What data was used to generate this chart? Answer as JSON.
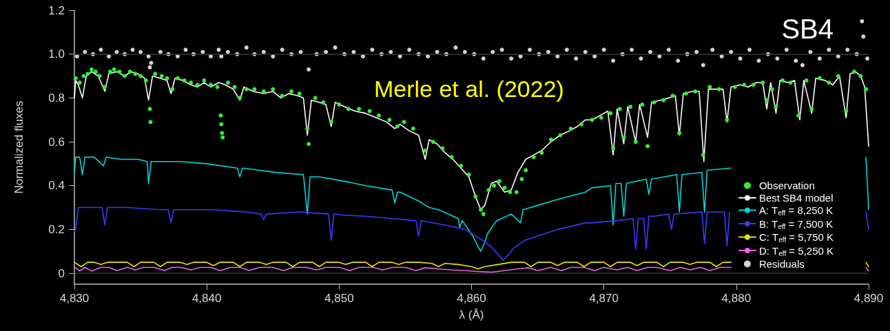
{
  "chart_data": {
    "type": "line",
    "xlabel": "λ (Å)",
    "ylabel": "Normalized fluxes",
    "annotations": [
      "Merle et al. (2022)",
      "SB4"
    ],
    "xlim": [
      4830,
      4890
    ],
    "xticks": [
      {
        "value": 4830,
        "label": "4,830"
      },
      {
        "value": 4840,
        "label": "4,840"
      },
      {
        "value": 4850,
        "label": "4,850"
      },
      {
        "value": 4860,
        "label": "4,860"
      },
      {
        "value": 4870,
        "label": "4,870"
      },
      {
        "value": 4880,
        "label": "4,880"
      },
      {
        "value": 4890,
        "label": "4,890"
      }
    ],
    "ylim": [
      -0.05,
      1.2
    ],
    "yticks": [
      0,
      0.2,
      0.4,
      0.6,
      0.8,
      {
        "value": 1,
        "label": "1.0"
      },
      1.2
    ],
    "legend": "bottom right",
    "ref_lines": [
      {
        "axis": "y",
        "value": 0,
        "color": "#3a3a3a"
      },
      {
        "axis": "y",
        "value": 1,
        "color": "#3a3a3a"
      }
    ],
    "series": [
      {
        "name": "Observation",
        "type": "scatter",
        "color": "#33ee33",
        "x": [
          4830.1,
          4830.4,
          4830.7,
          4831.0,
          4831.3,
          4831.6,
          4831.9,
          4832.3,
          4832.7,
          4833.0,
          4833.4,
          4833.8,
          4834.2,
          4834.6,
          4835.0,
          4835.4,
          4835.7,
          4835.75,
          4836.1,
          4836.6,
          4837.0,
          4837.4,
          4837.8,
          4838.3,
          4838.8,
          4839.3,
          4839.8,
          4840.3,
          4840.8,
          4841.05,
          4841.1,
          4841.15,
          4841.2,
          4841.6,
          4842.1,
          4842.5,
          4843.0,
          4843.6,
          4844.3,
          4845.0,
          4845.7,
          4846.4,
          4847.0,
          4847.6,
          4847.7,
          4848.2,
          4848.8,
          4849.4,
          4850.0,
          4850.7,
          4851.5,
          4852.3,
          4853.0,
          4853.8,
          4854.4,
          4854.9,
          4855.6,
          4856.5,
          4857.1,
          4857.8,
          4858.5,
          4859.2,
          4859.8,
          4860.3,
          4860.7,
          4860.9,
          4861.3,
          4861.7,
          4862.1,
          4862.5,
          4862.9,
          4863.4,
          4863.8,
          4864.1,
          4864.7,
          4865.3,
          4866.0,
          4866.7,
          4867.5,
          4868.3,
          4869.1,
          4869.8,
          4870.5,
          4870.7,
          4871.2,
          4871.5,
          4872.0,
          4872.4,
          4872.9,
          4873.3,
          4873.8,
          4874.5,
          4875.2,
          4875.7,
          4876.2,
          4876.9,
          4877.5,
          4878.0,
          4878.7,
          4879.3,
          4879.9,
          4880.6,
          4881.3,
          4882.0,
          4882.3,
          4882.7,
          4883.0,
          4883.5,
          4884.1,
          4884.7,
          4885.3,
          4885.7,
          4886.3,
          4887.0,
          4887.7,
          4888.3,
          4888.9,
          4889.4,
          4889.8
        ],
        "values": [
          0.89,
          0.87,
          0.9,
          0.91,
          0.93,
          0.92,
          0.9,
          0.85,
          0.92,
          0.93,
          0.92,
          0.9,
          0.92,
          0.91,
          0.9,
          0.88,
          0.75,
          0.69,
          0.91,
          0.9,
          0.89,
          0.84,
          0.89,
          0.88,
          0.87,
          0.86,
          0.88,
          0.86,
          0.85,
          0.72,
          0.68,
          0.64,
          0.62,
          0.87,
          0.85,
          0.8,
          0.84,
          0.84,
          0.83,
          0.84,
          0.81,
          0.83,
          0.82,
          0.66,
          0.59,
          0.8,
          0.78,
          0.69,
          0.77,
          0.75,
          0.75,
          0.74,
          0.72,
          0.7,
          0.67,
          0.69,
          0.66,
          0.56,
          0.6,
          0.57,
          0.53,
          0.49,
          0.45,
          0.35,
          0.29,
          0.27,
          0.38,
          0.4,
          0.42,
          0.39,
          0.37,
          0.37,
          0.43,
          0.47,
          0.53,
          0.55,
          0.61,
          0.63,
          0.66,
          0.68,
          0.7,
          0.71,
          0.73,
          0.57,
          0.75,
          0.62,
          0.76,
          0.6,
          0.77,
          0.58,
          0.78,
          0.79,
          0.81,
          0.64,
          0.82,
          0.83,
          0.54,
          0.85,
          0.84,
          0.7,
          0.85,
          0.86,
          0.86,
          0.87,
          0.79,
          0.84,
          0.76,
          0.88,
          0.87,
          0.72,
          0.88,
          0.75,
          0.89,
          0.87,
          0.9,
          0.74,
          0.92,
          0.9,
          0.84
        ]
      },
      {
        "name": "Best SB4 model",
        "color": "#ffffff",
        "x": [
          4830.0,
          4830.1,
          4830.3,
          4830.6,
          4830.9,
          4831.3,
          4831.8,
          4832.3,
          4832.6,
          4833.2,
          4833.8,
          4834.3,
          4834.8,
          4835.3,
          4835.6,
          4835.9,
          4836.5,
          4837.0,
          4837.3,
          4837.6,
          4838.2,
          4838.8,
          4839.3,
          4839.8,
          4840.3,
          4840.9,
          4841.4,
          4842.0,
          4842.5,
          4842.8,
          4843.5,
          4844.3,
          4845.0,
          4845.6,
          4846.2,
          4846.9,
          4847.3,
          4847.6,
          4847.9,
          4848.5,
          4849.0,
          4849.4,
          4849.7,
          4850.4,
          4851.2,
          4852.0,
          4852.8,
          4853.6,
          4854.2,
          4854.6,
          4855.3,
          4856.0,
          4856.5,
          4856.8,
          4857.4,
          4858.0,
          4858.6,
          4859.2,
          4859.8,
          4860.3,
          4860.7,
          4861.0,
          4861.5,
          4861.9,
          4862.5,
          4863.0,
          4863.5,
          4864.1,
          4864.7,
          4865.3,
          4866.0,
          4866.7,
          4867.4,
          4868.0,
          4868.6,
          4869.1,
          4869.7,
          4870.3,
          4870.7,
          4871.0,
          4871.5,
          4871.8,
          4872.4,
          4872.7,
          4873.3,
          4873.6,
          4874.3,
          4874.9,
          4875.4,
          4875.7,
          4876.0,
          4876.7,
          4877.2,
          4877.55,
          4877.9,
          4878.5,
          4879.0,
          4879.3,
          4879.6,
          4880.3,
          4880.9,
          4881.5,
          4882.0,
          4882.3,
          4882.6,
          4883.0,
          4883.3,
          4883.9,
          4884.4,
          4884.8,
          4885.1,
          4885.7,
          4886.0,
          4886.7,
          4887.3,
          4887.8,
          4888.3,
          4888.6,
          4889.0,
          4889.4,
          4889.7,
          4890.0
        ],
        "values": [
          0.8,
          0.88,
          0.86,
          0.8,
          0.9,
          0.92,
          0.9,
          0.83,
          0.91,
          0.92,
          0.9,
          0.92,
          0.91,
          0.89,
          0.79,
          0.9,
          0.89,
          0.88,
          0.82,
          0.89,
          0.88,
          0.86,
          0.85,
          0.87,
          0.85,
          0.87,
          0.86,
          0.84,
          0.79,
          0.85,
          0.83,
          0.82,
          0.83,
          0.8,
          0.82,
          0.81,
          0.8,
          0.63,
          0.79,
          0.78,
          0.77,
          0.67,
          0.78,
          0.76,
          0.74,
          0.73,
          0.71,
          0.69,
          0.66,
          0.68,
          0.65,
          0.63,
          0.52,
          0.61,
          0.59,
          0.55,
          0.52,
          0.48,
          0.44,
          0.35,
          0.29,
          0.31,
          0.41,
          0.42,
          0.37,
          0.38,
          0.46,
          0.52,
          0.54,
          0.56,
          0.6,
          0.63,
          0.65,
          0.67,
          0.7,
          0.7,
          0.72,
          0.74,
          0.54,
          0.75,
          0.59,
          0.76,
          0.6,
          0.77,
          0.62,
          0.78,
          0.79,
          0.8,
          0.81,
          0.63,
          0.82,
          0.83,
          0.83,
          0.51,
          0.84,
          0.84,
          0.84,
          0.69,
          0.85,
          0.86,
          0.85,
          0.87,
          0.87,
          0.75,
          0.87,
          0.73,
          0.88,
          0.87,
          0.88,
          0.7,
          0.88,
          0.73,
          0.89,
          0.88,
          0.86,
          0.9,
          0.71,
          0.91,
          0.92,
          0.9,
          0.85,
          0.58
        ]
      },
      {
        "name": "A: T$_{eff}$ = 8,250 K",
        "color": "#00d8d8",
        "x": [
          4830.0,
          4830.1,
          4830.4,
          4830.6,
          4830.8,
          4831.5,
          4832.2,
          4832.4,
          4833.5,
          4834.8,
          4835.5,
          4835.6,
          4835.8,
          4836.5,
          4838.0,
          4840.0,
          4842.3,
          4842.5,
          4842.7,
          4844.0,
          4845.2,
          4847.3,
          4847.6,
          4847.8,
          4848.5,
          4850.4,
          4852.0,
          4854.0,
          4854.2,
          4854.4,
          4854.6,
          4856.0,
          4856.8,
          4857.5,
          4859.0,
          4859.1,
          4859.3,
          4860.1,
          4860.5,
          4860.7,
          4861.0,
          4861.2,
          4861.9,
          4863.0,
          4863.7,
          4863.9,
          4865.0,
          4866.7,
          4868.6,
          4869.1,
          4870.5,
          4870.7,
          4870.9,
          4871.3,
          4871.5,
          4871.7,
          4873.2,
          4873.4,
          4873.6,
          4875.5,
          4875.7,
          4875.9,
          4877.4,
          4877.6,
          4877.8,
          4879.6,
          null,
          4889.8,
          4890.0
        ],
        "values": [
          0.46,
          0.53,
          0.53,
          0.45,
          0.53,
          0.53,
          0.49,
          0.53,
          0.52,
          0.52,
          0.51,
          0.41,
          0.51,
          0.51,
          0.51,
          0.5,
          0.48,
          0.44,
          0.48,
          0.47,
          0.46,
          0.45,
          0.27,
          0.44,
          0.44,
          0.42,
          0.4,
          0.38,
          0.32,
          0.37,
          0.37,
          0.33,
          0.3,
          0.29,
          0.25,
          0.21,
          0.24,
          0.17,
          0.12,
          0.1,
          0.14,
          0.18,
          0.24,
          0.27,
          0.23,
          0.29,
          0.31,
          0.34,
          0.37,
          0.39,
          0.4,
          0.22,
          0.41,
          0.41,
          0.26,
          0.41,
          0.43,
          0.36,
          0.43,
          0.45,
          0.28,
          0.45,
          0.46,
          0.28,
          0.47,
          0.48,
          null,
          0.53,
          0.29
        ]
      },
      {
        "name": "B: T$_{eff}$ = 7,500 K",
        "color": "#3a3aff",
        "x": [
          4830.0,
          4830.1,
          4830.3,
          4830.8,
          4832.1,
          4832.3,
          4832.5,
          4834.0,
          4836.5,
          4837.1,
          4837.3,
          4837.5,
          4839.0,
          4840.5,
          4841.7,
          4843.0,
          4844.1,
          4844.3,
          4844.5,
          4846.9,
          4849.2,
          4849.4,
          4849.6,
          4850.4,
          4852.0,
          4854.0,
          4855.8,
          4856.0,
          4856.2,
          4858.0,
          4859.5,
          4860.6,
          4861.5,
          4862.1,
          4862.4,
          4862.7,
          4863.2,
          4864.0,
          4865.0,
          4866.5,
          4868.6,
          4869.1,
          4871.0,
          4872.2,
          4872.4,
          4872.6,
          4873.0,
          4873.2,
          4873.4,
          4873.8,
          4874.9,
          4875.1,
          4875.3,
          4877.4,
          4877.6,
          4877.8,
          4879.1,
          4879.3,
          4879.5,
          null,
          4889.8,
          4890.0
        ],
        "values": [
          0.19,
          0.2,
          0.3,
          0.3,
          0.3,
          0.22,
          0.3,
          0.3,
          0.29,
          0.29,
          0.23,
          0.29,
          0.29,
          0.29,
          0.285,
          0.28,
          0.27,
          0.245,
          0.27,
          0.28,
          0.27,
          0.15,
          0.27,
          0.265,
          0.26,
          0.25,
          0.24,
          0.17,
          0.24,
          0.22,
          0.2,
          0.16,
          0.12,
          0.08,
          0.06,
          0.08,
          0.115,
          0.15,
          0.17,
          0.2,
          0.23,
          0.23,
          0.24,
          0.25,
          0.11,
          0.25,
          0.25,
          0.11,
          0.26,
          0.26,
          0.27,
          0.2,
          0.27,
          0.28,
          0.135,
          0.28,
          0.28,
          0.125,
          0.28,
          null,
          0.28,
          0.2
        ]
      },
      {
        "name": "C: T$_{eff}$ = 5,750 K",
        "color": "#e8e800",
        "x": [
          4830.0,
          4830.5,
          4831.0,
          4831.5,
          4832.0,
          4832.5,
          4833.0,
          4834.0,
          4834.5,
          4835.0,
          4836.0,
          4836.5,
          4837.0,
          4838.0,
          4838.5,
          4839.0,
          4840.0,
          4840.5,
          4841.0,
          4842.0,
          4842.5,
          4843.0,
          4844.0,
          4844.5,
          4845.0,
          4846.0,
          4846.5,
          4847.0,
          4848.0,
          4848.5,
          4849.0,
          4850.0,
          4850.5,
          4851.0,
          4852.0,
          4852.5,
          4853.0,
          4854.0,
          4854.5,
          4855.0,
          4856.0,
          4857.0,
          4857.5,
          4858.0,
          4859.0,
          4860.0,
          4860.5,
          4861.0,
          4862.0,
          4863.0,
          4864.0,
          4864.5,
          4865.0,
          4866.0,
          4866.5,
          4867.0,
          4868.0,
          4868.5,
          4869.0,
          4870.0,
          4870.5,
          4871.0,
          4872.0,
          4872.5,
          4873.0,
          4874.0,
          4874.5,
          4875.0,
          4876.0,
          4876.5,
          4877.0,
          4878.0,
          4878.5,
          4879.0,
          4879.6,
          null,
          4889.8,
          4890.0
        ],
        "values": [
          0.05,
          0.03,
          0.05,
          0.05,
          0.04,
          0.05,
          0.05,
          0.05,
          0.03,
          0.05,
          0.05,
          0.03,
          0.05,
          0.05,
          0.04,
          0.05,
          0.05,
          0.035,
          0.05,
          0.05,
          0.03,
          0.05,
          0.05,
          0.04,
          0.05,
          0.05,
          0.03,
          0.05,
          0.05,
          0.03,
          0.05,
          0.05,
          0.04,
          0.05,
          0.05,
          0.03,
          0.05,
          0.05,
          0.04,
          0.05,
          0.05,
          0.045,
          0.03,
          0.045,
          0.04,
          0.03,
          0.02,
          0.03,
          0.04,
          0.05,
          0.05,
          0.03,
          0.05,
          0.05,
          0.035,
          0.05,
          0.05,
          0.03,
          0.05,
          0.05,
          0.03,
          0.05,
          0.05,
          0.035,
          0.05,
          0.05,
          0.03,
          0.05,
          0.05,
          0.04,
          0.05,
          0.05,
          0.03,
          0.05,
          0.05,
          null,
          0.05,
          0.03
        ]
      },
      {
        "name": "D: T$_{eff}$ = 5,250 K",
        "color": "#ee66ee",
        "x": [
          4830.0,
          4830.4,
          4830.8,
          4831.3,
          4832.0,
          4832.6,
          4833.2,
          4834.0,
          4834.6,
          4835.2,
          4836.0,
          4836.8,
          4837.4,
          4838.0,
          4838.8,
          4839.5,
          4840.3,
          4841.0,
          4841.8,
          4842.5,
          4843.2,
          4844.0,
          4845.0,
          4845.8,
          4846.5,
          4847.5,
          4848.3,
          4849.0,
          4850.0,
          4850.8,
          4851.5,
          4852.5,
          4853.3,
          4854.0,
          4855.0,
          4855.8,
          4856.5,
          4857.5,
          4858.5,
          4859.5,
          4860.5,
          4861.5,
          4862.5,
          4863.5,
          4864.3,
          4865.0,
          4866.0,
          4866.8,
          4867.5,
          4868.5,
          4869.3,
          4870.0,
          4871.0,
          4871.8,
          4872.5,
          4873.3,
          4874.0,
          4875.0,
          4875.8,
          4876.5,
          4877.3,
          4878.0,
          4878.8,
          4879.6,
          null,
          4889.8,
          4890.0
        ],
        "values": [
          0.03,
          0.01,
          0.027,
          0.01,
          0.027,
          0.027,
          0.012,
          0.027,
          0.015,
          0.027,
          0.027,
          0.012,
          0.027,
          0.027,
          0.015,
          0.027,
          0.027,
          0.012,
          0.027,
          0.027,
          0.013,
          0.027,
          0.027,
          0.012,
          0.027,
          0.027,
          0.015,
          0.027,
          0.027,
          0.012,
          0.027,
          0.027,
          0.015,
          0.027,
          0.027,
          0.012,
          0.025,
          0.02,
          0.015,
          0.012,
          0.008,
          0.005,
          0.012,
          0.02,
          0.025,
          0.012,
          0.027,
          0.012,
          0.027,
          0.027,
          0.012,
          0.027,
          0.015,
          0.027,
          0.012,
          0.027,
          0.027,
          0.012,
          0.027,
          0.015,
          0.027,
          0.012,
          0.027,
          0.027,
          null,
          0.027,
          0.01
        ]
      },
      {
        "name": "Residuals",
        "type": "scatter",
        "color": "#d4d4d4",
        "x": [
          4830.2,
          4830.8,
          4831.4,
          4832.0,
          4832.6,
          4833.2,
          4833.8,
          4834.4,
          4835.0,
          4835.6,
          4835.7,
          4835.8,
          4836.5,
          4837.1,
          4837.8,
          4838.4,
          4839.0,
          4839.7,
          4840.3,
          4840.9,
          4841.1,
          4841.6,
          4842.3,
          4843.0,
          4843.6,
          4844.3,
          4845.0,
          4845.7,
          4846.4,
          4847.1,
          4847.7,
          4848.3,
          4849.0,
          4849.7,
          4850.4,
          4851.1,
          4851.8,
          4852.5,
          4853.2,
          4853.9,
          4854.6,
          4855.3,
          4856.0,
          4856.7,
          4857.4,
          4858.1,
          4858.8,
          4859.5,
          4860.2,
          4860.9,
          4861.6,
          4862.3,
          4863.0,
          4863.7,
          4864.4,
          4865.1,
          4865.8,
          4866.5,
          4867.2,
          4867.9,
          4868.6,
          4869.3,
          4870.0,
          4870.7,
          4871.4,
          4872.1,
          4872.8,
          4873.5,
          4874.2,
          4874.9,
          4875.6,
          4876.3,
          4877.0,
          4877.5,
          4878.2,
          4878.9,
          4879.6,
          4880.3,
          4881.0,
          4881.7,
          4882.4,
          4883.1,
          4883.8,
          4884.5,
          4885.0,
          4885.6,
          4886.3,
          4887.0,
          4887.7,
          4888.4,
          4889.1,
          4889.5,
          4889.6,
          4889.9
        ],
        "values": [
          0.99,
          1.01,
          1.0,
          1.02,
          0.99,
          1.01,
          1.0,
          1.02,
          1.01,
          0.99,
          0.94,
          0.96,
          1.01,
          1.0,
          0.99,
          1.02,
          1.0,
          1.01,
          0.99,
          1.02,
          0.99,
          1.01,
          1.0,
          1.03,
          1.0,
          1.01,
          0.99,
          1.02,
          1.0,
          1.01,
          0.93,
          1.0,
          1.01,
          1.03,
          1.0,
          1.01,
          0.99,
          1.02,
          1.0,
          1.01,
          0.99,
          1.02,
          1.0,
          0.99,
          1.01,
          1.0,
          1.03,
          1.01,
          1.0,
          0.98,
          1.01,
          1.02,
          0.98,
          0.99,
          1.02,
          1.0,
          1.01,
          0.99,
          1.02,
          0.98,
          1.01,
          0.99,
          1.02,
          0.97,
          1.0,
          1.02,
          0.98,
          1.01,
          0.99,
          1.02,
          0.97,
          1.0,
          1.01,
          0.95,
          1.02,
          0.99,
          1.01,
          0.98,
          1.02,
          0.97,
          1.0,
          0.98,
          1.02,
          0.97,
          0.95,
          1.01,
          0.98,
          1.02,
          0.99,
          1.02,
          1.0,
          1.15,
          1.08,
          0.98
        ]
      }
    ]
  }
}
